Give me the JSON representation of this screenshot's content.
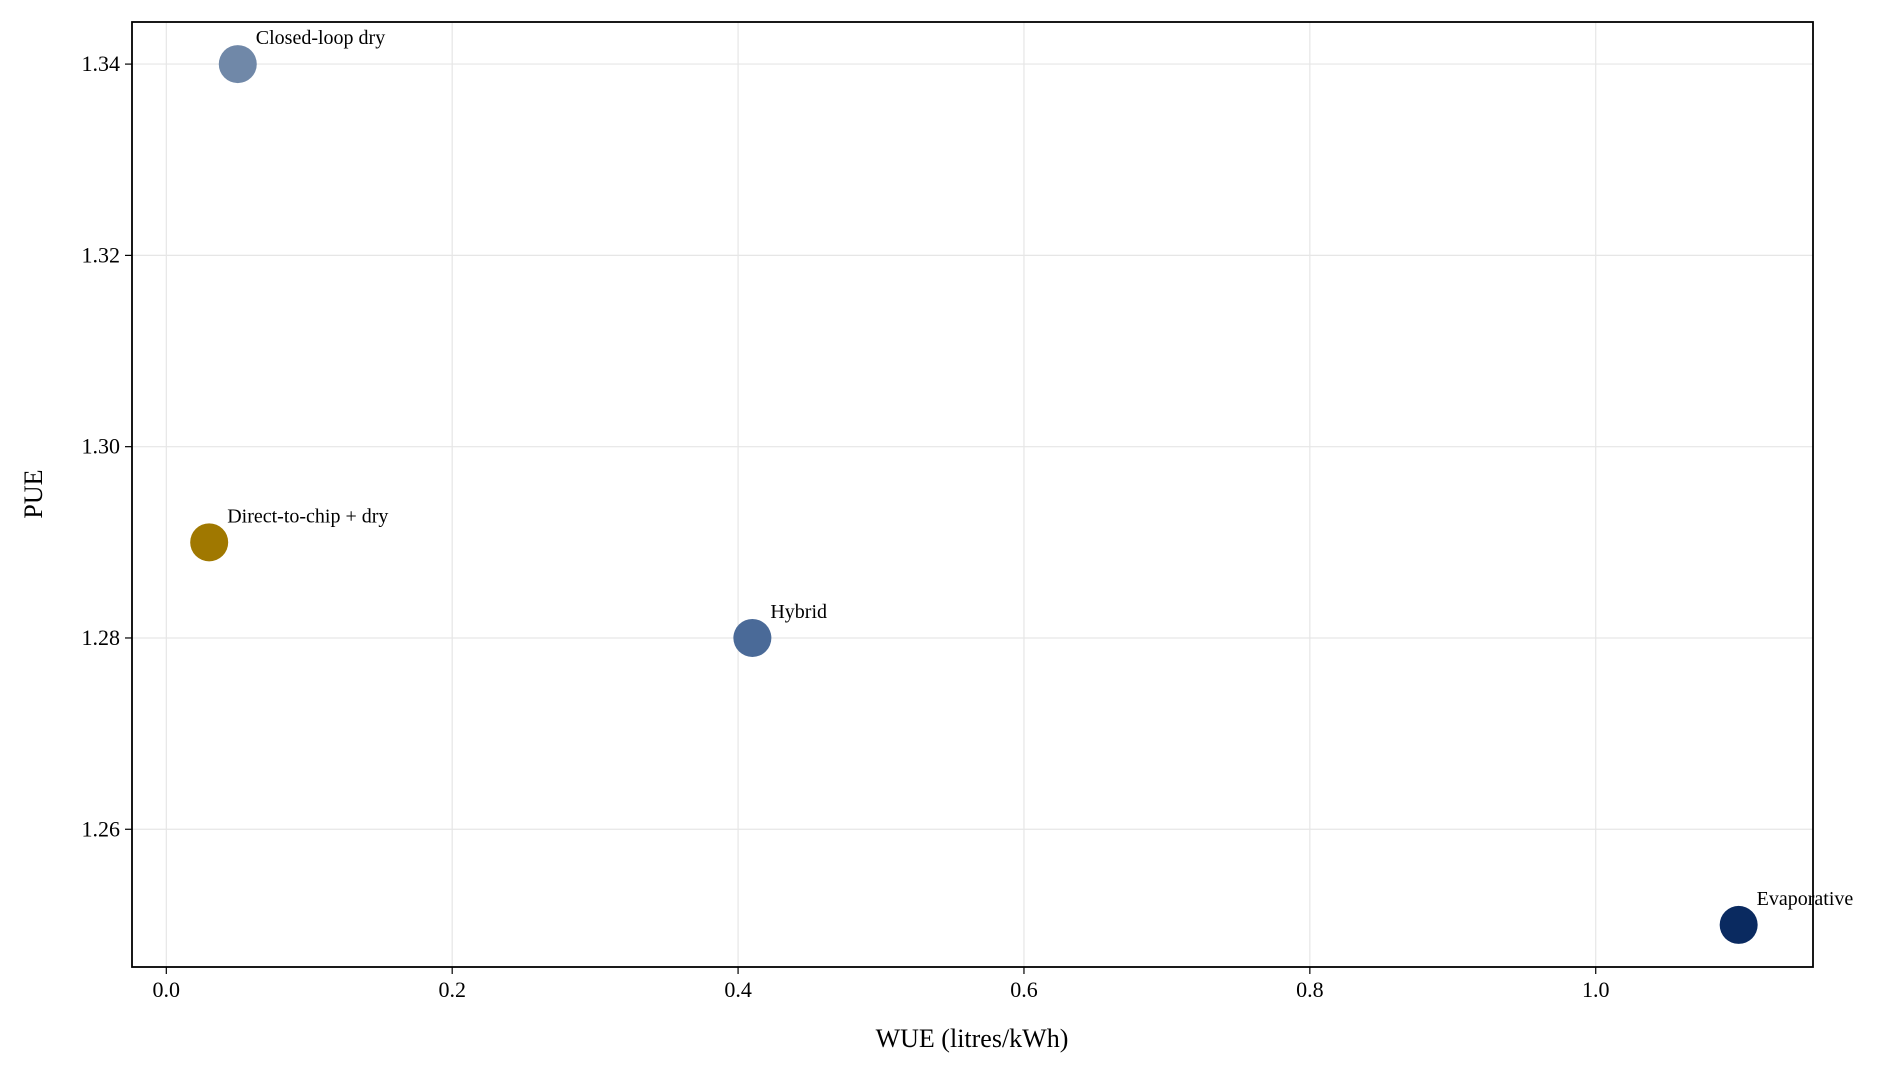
{
  "chart_data": {
    "type": "scatter",
    "xlabel": "WUE (litres/kWh)",
    "ylabel": "PUE",
    "x": [
      0.05,
      0.03,
      0.41,
      1.1
    ],
    "values": [
      1.34,
      1.29,
      1.28,
      1.25
    ],
    "labels": [
      "Closed-loop dry",
      "Direct-to-chip + dry",
      "Hybrid",
      "Evaporative"
    ],
    "colors": [
      "#7088a8",
      "#a07800",
      "#4a6a98",
      "#0a2a60"
    ],
    "xlim": [
      -0.024,
      1.152
    ],
    "ylim": [
      1.2456,
      1.3444
    ],
    "xticks": [
      {
        "value": 0,
        "label": "0.0"
      },
      0.2,
      0.4,
      0.6,
      0.8,
      {
        "value": 1,
        "label": "1.0"
      }
    ],
    "yticks": [
      1.26,
      1.28,
      {
        "value": 1.3,
        "label": "1.30"
      },
      1.32,
      1.34
    ],
    "grid": true
  }
}
